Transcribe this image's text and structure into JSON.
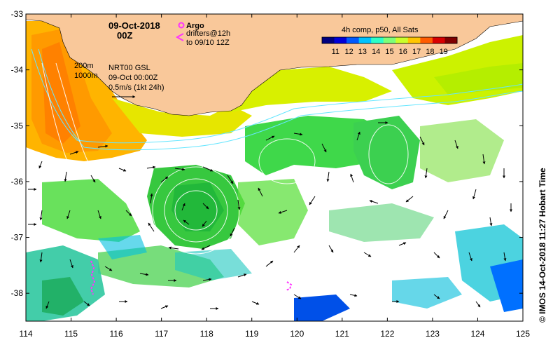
{
  "header": {
    "date": "09-Oct-2018",
    "time": "00Z"
  },
  "argo": {
    "label": "Argo",
    "drifters_line1": "drifters@12h",
    "drifters_line2": "to 09/10 12Z",
    "argo_color": "#ff33ff",
    "drifter_color": "#ff33ff"
  },
  "colorbar": {
    "title": "4h comp, p50, All Sats",
    "ticks": [
      "11",
      "12",
      "13",
      "14",
      "15",
      "16",
      "17",
      "18",
      "19"
    ],
    "colors": [
      "#00007f",
      "#0000d8",
      "#0059ff",
      "#00c3ff",
      "#2cffc8",
      "#7dff79",
      "#cbff2b",
      "#ffc600",
      "#ff5b00",
      "#d80000",
      "#7f0000"
    ]
  },
  "legend": {
    "isobath_1": "200m",
    "isobath_2": "1000m",
    "product": "NRT00 GSL",
    "product_time": "09-Oct 00:00Z",
    "velocity_scale": "0.5m/s (1kt 24h)"
  },
  "axes": {
    "x_ticks": [
      "114",
      "115",
      "116",
      "117",
      "118",
      "119",
      "120",
      "121",
      "122",
      "123",
      "124",
      "125"
    ],
    "y_ticks": [
      "-33",
      "-34",
      "-35",
      "-36",
      "-37",
      "-38"
    ],
    "x_range": [
      114,
      125
    ],
    "y_range": [
      -38.5,
      -33
    ]
  },
  "credit": "© IMOS 14-Oct-2018 11:27 Hobart Time",
  "colors": {
    "land": "#f9c89a",
    "isobath": "#66e6ff",
    "background": "#ffffff"
  }
}
